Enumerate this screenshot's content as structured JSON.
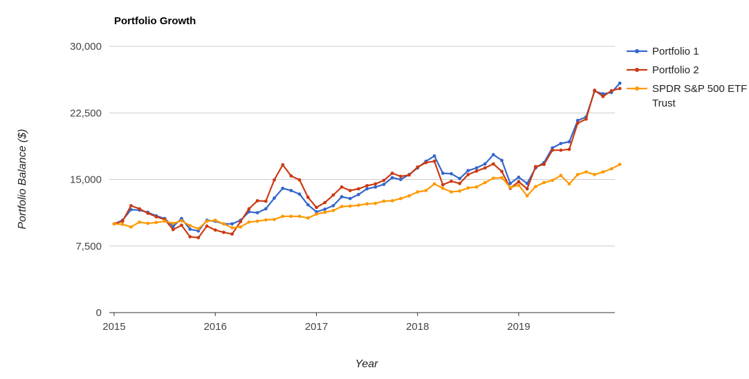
{
  "chart_data": {
    "type": "line",
    "title": "Portfolio Growth",
    "xlabel": "Year",
    "ylabel": "Portfolio Balance ($)",
    "ylim": [
      0,
      30000
    ],
    "yticks": [
      0,
      7500,
      15000,
      22500,
      30000
    ],
    "yticklabels": [
      "0",
      "7,500",
      "15,000",
      "22,500",
      "30,000"
    ],
    "xlim": [
      2015,
      2020
    ],
    "xticks": [
      2015,
      2016,
      2017,
      2018,
      2019
    ],
    "xticklabels": [
      "2015",
      "2016",
      "2017",
      "2018",
      "2019"
    ],
    "grid": "horizontal",
    "legend_position": "right",
    "series": [
      {
        "name": "Portfolio 1",
        "color": "#3366cc",
        "values": [
          10000,
          10400,
          11600,
          11550,
          11300,
          10900,
          10600,
          9700,
          10600,
          9400,
          9200,
          10400,
          10300,
          10000,
          10000,
          10400,
          11350,
          11250,
          11700,
          12900,
          14000,
          13750,
          13350,
          12150,
          11350,
          11650,
          12050,
          13050,
          12850,
          13300,
          13950,
          14150,
          14450,
          15200,
          15000,
          15550,
          16300,
          17050,
          17650,
          15700,
          15650,
          15100,
          16000,
          16300,
          16750,
          17800,
          17150,
          14550,
          15250,
          14550,
          16300,
          16900,
          18550,
          19050,
          19250,
          21650,
          22050,
          24950,
          24650,
          24800,
          25850
        ]
      },
      {
        "name": "Portfolio 2",
        "color": "#cc3912",
        "values": [
          10000,
          10300,
          12050,
          11700,
          11200,
          10800,
          10500,
          9350,
          9850,
          8550,
          8450,
          9750,
          9300,
          9050,
          8850,
          10250,
          11700,
          12600,
          12550,
          14950,
          16650,
          15400,
          14950,
          13000,
          11850,
          12400,
          13250,
          14150,
          13750,
          13950,
          14300,
          14500,
          14900,
          15700,
          15350,
          15500,
          16400,
          16900,
          17050,
          14400,
          14800,
          14550,
          15550,
          15950,
          16300,
          16750,
          15900,
          14000,
          14750,
          13950,
          16450,
          16700,
          18300,
          18300,
          18400,
          21350,
          21800,
          25050,
          24350,
          25000,
          25250
        ]
      },
      {
        "name": "SPDR S&P 500 ETF Trust",
        "color": "#ff9900",
        "values": [
          10000,
          9950,
          9650,
          10200,
          10050,
          10150,
          10300,
          10050,
          10350,
          9800,
          9450,
          10300,
          10400,
          10000,
          9550,
          9650,
          10200,
          10300,
          10450,
          10500,
          10850,
          10850,
          10850,
          10650,
          11100,
          11300,
          11500,
          11950,
          12000,
          12100,
          12250,
          12300,
          12550,
          12600,
          12850,
          13150,
          13600,
          13750,
          14500,
          14000,
          13600,
          13700,
          14050,
          14150,
          14650,
          15150,
          15200,
          14100,
          14350,
          13150,
          14200,
          14650,
          14900,
          15450,
          14500,
          15550,
          15850,
          15550,
          15850,
          16200,
          16700
        ]
      }
    ]
  }
}
